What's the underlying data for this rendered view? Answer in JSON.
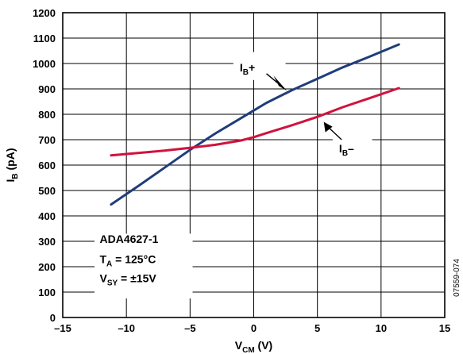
{
  "chart_data": {
    "type": "line",
    "xlabel": {
      "main": "V",
      "sub": "CM",
      "suffix": " (V)"
    },
    "ylabel": {
      "main": "I",
      "sub": "B",
      "suffix": " (pA)"
    },
    "xlim": [
      -15,
      15
    ],
    "ylim": [
      0,
      1200
    ],
    "xticks": [
      -15,
      -10,
      -5,
      0,
      5,
      10,
      15
    ],
    "xtick_labels": [
      "–15",
      "–10",
      "–5",
      "0",
      "5",
      "10",
      "15"
    ],
    "yticks": [
      0,
      100,
      200,
      300,
      400,
      500,
      600,
      700,
      800,
      900,
      1000,
      1100,
      1200
    ],
    "grid": true,
    "series": [
      {
        "name": "I_B+",
        "color": "#1f3d7a",
        "x": [
          -11.2,
          -9,
          -7,
          -5,
          -3,
          -1,
          0,
          1,
          3,
          5,
          7,
          9,
          11.4
        ],
        "y": [
          445,
          520,
          590,
          660,
          725,
          785,
          815,
          845,
          895,
          940,
          985,
          1025,
          1075
        ]
      },
      {
        "name": "I_B−",
        "color": "#d1123f",
        "x": [
          -11.2,
          -9,
          -7,
          -5,
          -3,
          -1,
          0,
          1,
          3,
          5,
          7,
          9,
          11.4
        ],
        "y": [
          638,
          648,
          657,
          668,
          680,
          697,
          710,
          726,
          757,
          790,
          828,
          862,
          903
        ]
      }
    ],
    "labels": [
      {
        "main": "I",
        "sub": "B",
        "suffix": "+"
      },
      {
        "main": "I",
        "sub": "B",
        "suffix": "–"
      }
    ],
    "annotation_lines": [
      {
        "main": "ADA4627-1",
        "sub": "",
        "suffix": ""
      },
      {
        "main": "T",
        "sub": "A",
        "suffix": " = 125°C"
      },
      {
        "main": "V",
        "sub": "SY",
        "suffix": " = ±15V"
      }
    ],
    "figure_id": "07559-074"
  }
}
